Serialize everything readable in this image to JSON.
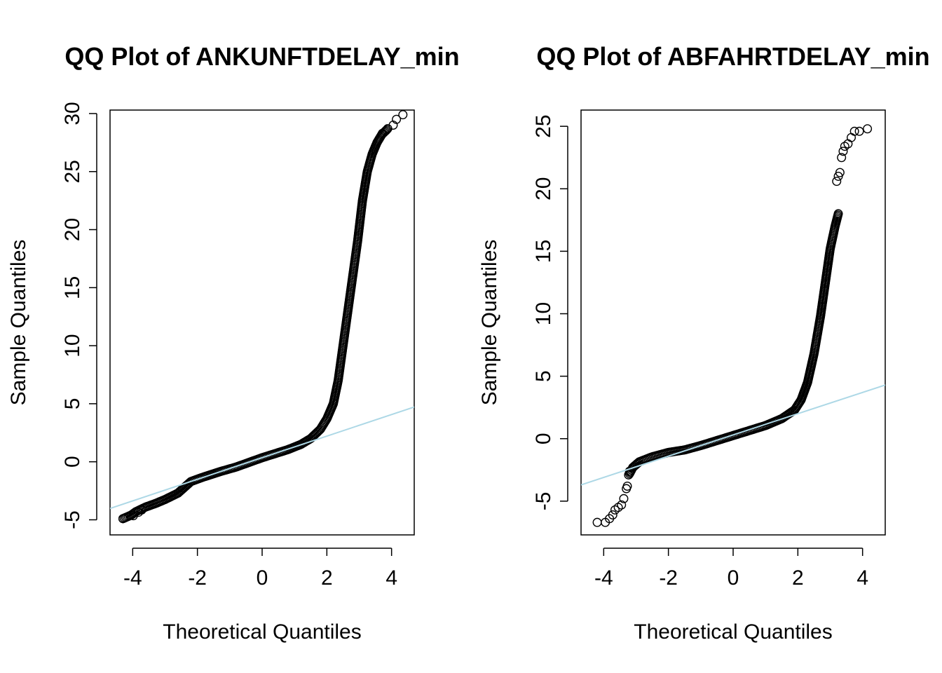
{
  "chart_data": [
    {
      "type": "scatter",
      "title": "QQ Plot of ANKUNFTDELAY_min",
      "xlabel": "Theoretical Quantiles",
      "ylabel": "Sample Quantiles",
      "xlim": [
        -4.7,
        4.7
      ],
      "ylim": [
        -6.3,
        30.3
      ],
      "xticks": [
        -4,
        -2,
        0,
        2,
        4
      ],
      "yticks": [
        -5,
        0,
        5,
        10,
        15,
        20,
        25,
        30
      ],
      "xtick_labels": [
        "-4",
        "-2",
        "0",
        "2",
        "4"
      ],
      "ytick_labels": [
        "-5",
        "0",
        "5",
        "10",
        "15",
        "20",
        "25",
        "30"
      ],
      "grid": false,
      "reference_line": {
        "intercept": 0.35,
        "slope": 0.93,
        "color": "#add8e6"
      },
      "point_style": "open-circle",
      "point_color": "#000000",
      "curve": [
        [
          -4.3,
          -4.9
        ],
        [
          -4.05,
          -4.6
        ],
        [
          -3.9,
          -4.3
        ],
        [
          -3.6,
          -3.9
        ],
        [
          -3.3,
          -3.6
        ],
        [
          -3.0,
          -3.25
        ],
        [
          -2.6,
          -2.7
        ],
        [
          -2.2,
          -1.7
        ],
        [
          -1.8,
          -1.3
        ],
        [
          -1.3,
          -0.85
        ],
        [
          -0.8,
          -0.45
        ],
        [
          -0.4,
          -0.05
        ],
        [
          0.0,
          0.35
        ],
        [
          0.4,
          0.7
        ],
        [
          0.8,
          1.05
        ],
        [
          1.2,
          1.5
        ],
        [
          1.5,
          2.0
        ],
        [
          1.8,
          2.8
        ],
        [
          2.0,
          3.7
        ],
        [
          2.2,
          5.0
        ],
        [
          2.35,
          7.0
        ],
        [
          2.5,
          10.0
        ],
        [
          2.65,
          13.0
        ],
        [
          2.8,
          16.0
        ],
        [
          2.95,
          19.0
        ],
        [
          3.1,
          22.5
        ],
        [
          3.25,
          25.0
        ],
        [
          3.4,
          26.5
        ],
        [
          3.55,
          27.5
        ],
        [
          3.7,
          28.2
        ],
        [
          3.85,
          28.6
        ]
      ],
      "extremes": [
        [
          -4.3,
          -4.9
        ],
        [
          -3.98,
          -4.65
        ],
        [
          -3.82,
          -4.35
        ],
        [
          -3.72,
          -4.15
        ],
        [
          3.72,
          28.3
        ],
        [
          3.88,
          28.7
        ],
        [
          4.05,
          29.0
        ],
        [
          4.15,
          29.5
        ],
        [
          4.35,
          29.9
        ]
      ]
    },
    {
      "type": "scatter",
      "title": "QQ Plot of ABFAHRTDELAY_min",
      "xlabel": "Theoretical Quantiles",
      "ylabel": "Sample Quantiles",
      "xlim": [
        -4.7,
        4.7
      ],
      "ylim": [
        -7.7,
        26.3
      ],
      "xticks": [
        -4,
        -2,
        0,
        2,
        4
      ],
      "yticks": [
        -5,
        0,
        5,
        10,
        15,
        20,
        25
      ],
      "xtick_labels": [
        "-4",
        "-2",
        "0",
        "2",
        "4"
      ],
      "ytick_labels": [
        "-5",
        "0",
        "5",
        "10",
        "15",
        "20",
        "25"
      ],
      "grid": false,
      "reference_line": {
        "intercept": 0.3,
        "slope": 0.85,
        "color": "#add8e6"
      },
      "point_style": "open-circle",
      "point_color": "#000000",
      "curve": [
        [
          -3.2,
          -2.8
        ],
        [
          -3.1,
          -2.3
        ],
        [
          -2.9,
          -1.85
        ],
        [
          -2.5,
          -1.45
        ],
        [
          -2.0,
          -1.1
        ],
        [
          -1.5,
          -0.9
        ],
        [
          -1.0,
          -0.55
        ],
        [
          -0.5,
          -0.15
        ],
        [
          0.0,
          0.25
        ],
        [
          0.5,
          0.65
        ],
        [
          1.0,
          1.05
        ],
        [
          1.5,
          1.6
        ],
        [
          1.9,
          2.3
        ],
        [
          2.1,
          3.1
        ],
        [
          2.3,
          4.5
        ],
        [
          2.5,
          6.8
        ],
        [
          2.7,
          9.8
        ],
        [
          2.85,
          12.5
        ],
        [
          3.0,
          15.2
        ],
        [
          3.15,
          17.0
        ],
        [
          3.25,
          18.0
        ]
      ],
      "extremes": [
        [
          -4.2,
          -6.7
        ],
        [
          -3.95,
          -6.7
        ],
        [
          -3.82,
          -6.4
        ],
        [
          -3.72,
          -6.1
        ],
        [
          -3.65,
          -5.7
        ],
        [
          -3.55,
          -5.5
        ],
        [
          -3.45,
          -5.3
        ],
        [
          -3.38,
          -4.8
        ],
        [
          -3.3,
          -4.0
        ],
        [
          -3.27,
          -3.8
        ],
        [
          -3.23,
          -2.9
        ],
        [
          -3.2,
          -2.6
        ],
        [
          3.2,
          20.6
        ],
        [
          3.25,
          21.0
        ],
        [
          3.3,
          21.3
        ],
        [
          3.35,
          22.5
        ],
        [
          3.4,
          23.0
        ],
        [
          3.45,
          23.4
        ],
        [
          3.55,
          23.6
        ],
        [
          3.65,
          24.1
        ],
        [
          3.75,
          24.6
        ],
        [
          3.9,
          24.6
        ],
        [
          4.15,
          24.8
        ]
      ]
    }
  ]
}
